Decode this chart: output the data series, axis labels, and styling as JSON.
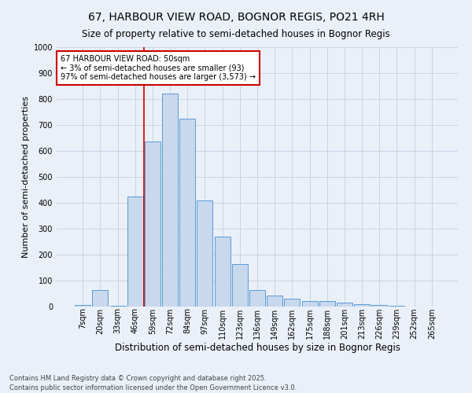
{
  "title": "67, HARBOUR VIEW ROAD, BOGNOR REGIS, PO21 4RH",
  "subtitle": "Size of property relative to semi-detached houses in Bognor Regis",
  "xlabel": "Distribution of semi-detached houses by size in Bognor Regis",
  "ylabel": "Number of semi-detached properties",
  "footnote": "Contains HM Land Registry data © Crown copyright and database right 2025.\nContains public sector information licensed under the Open Government Licence v3.0.",
  "categories": [
    "7sqm",
    "20sqm",
    "33sqm",
    "46sqm",
    "59sqm",
    "72sqm",
    "84sqm",
    "97sqm",
    "110sqm",
    "123sqm",
    "136sqm",
    "149sqm",
    "162sqm",
    "175sqm",
    "188sqm",
    "201sqm",
    "213sqm",
    "226sqm",
    "239sqm",
    "252sqm",
    "265sqm"
  ],
  "values": [
    5,
    65,
    3,
    425,
    635,
    820,
    725,
    410,
    270,
    165,
    65,
    42,
    30,
    22,
    20,
    14,
    10,
    5,
    3,
    1,
    0
  ],
  "bar_color": "#c8d8ed",
  "bar_edge_color": "#5b9bd5",
  "grid_color": "#c8d4e8",
  "background_color": "#eaf0f8",
  "annotation_text": "67 HARBOUR VIEW ROAD: 50sqm\n← 3% of semi-detached houses are smaller (93)\n97% of semi-detached houses are larger (3,573) →",
  "annotation_box_color": "#ffffff",
  "annotation_box_edge": "#cc0000",
  "vline_color": "#cc0000",
  "vline_x_index": 3.5,
  "ylim": [
    0,
    1000
  ],
  "yticks": [
    0,
    100,
    200,
    300,
    400,
    500,
    600,
    700,
    800,
    900,
    1000
  ],
  "title_fontsize": 10,
  "subtitle_fontsize": 8.5,
  "ylabel_fontsize": 8,
  "xlabel_fontsize": 8.5,
  "tick_fontsize": 7,
  "annot_fontsize": 7,
  "footnote_fontsize": 6
}
